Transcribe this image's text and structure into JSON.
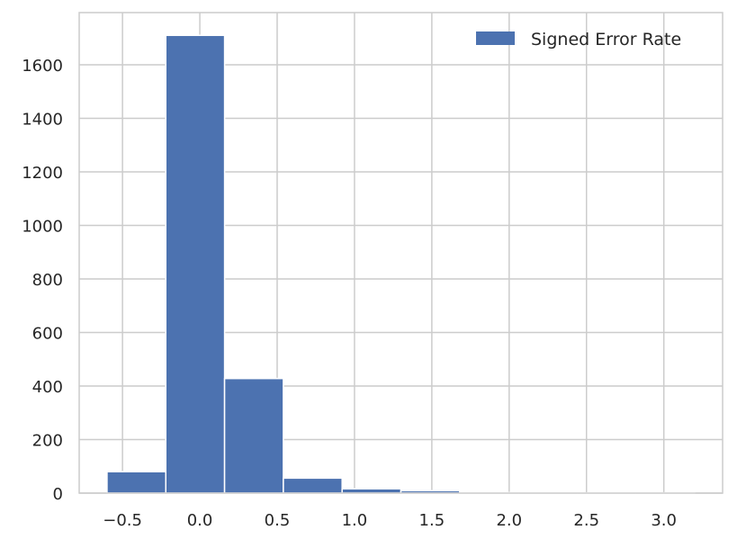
{
  "chart_data": {
    "type": "bar",
    "bin_edges": [
      -0.6,
      -0.22,
      0.16,
      0.54,
      0.92,
      1.3,
      1.68,
      2.06,
      2.44,
      2.82,
      3.2
    ],
    "values": [
      80,
      1710,
      428,
      56,
      16,
      9,
      2,
      1,
      1,
      1
    ],
    "series": [
      {
        "name": "Signed Error Rate",
        "color": "#4c72b0"
      }
    ],
    "xticks": [
      -0.5,
      0.0,
      0.5,
      1.0,
      1.5,
      2.0,
      2.5,
      3.0
    ],
    "xtick_labels": [
      "−0.5",
      "0.0",
      "0.5",
      "1.0",
      "1.5",
      "2.0",
      "2.5",
      "3.0"
    ],
    "yticks": [
      0,
      200,
      400,
      600,
      800,
      1000,
      1200,
      1400,
      1600
    ],
    "ytick_labels": [
      "0",
      "200",
      "400",
      "600",
      "800",
      "1000",
      "1200",
      "1400",
      "1600"
    ],
    "xlim": [
      -0.78,
      3.38
    ],
    "ylim": [
      0,
      1795
    ],
    "grid": true,
    "legend": "top-right",
    "title": "",
    "xlabel": "",
    "ylabel": ""
  }
}
